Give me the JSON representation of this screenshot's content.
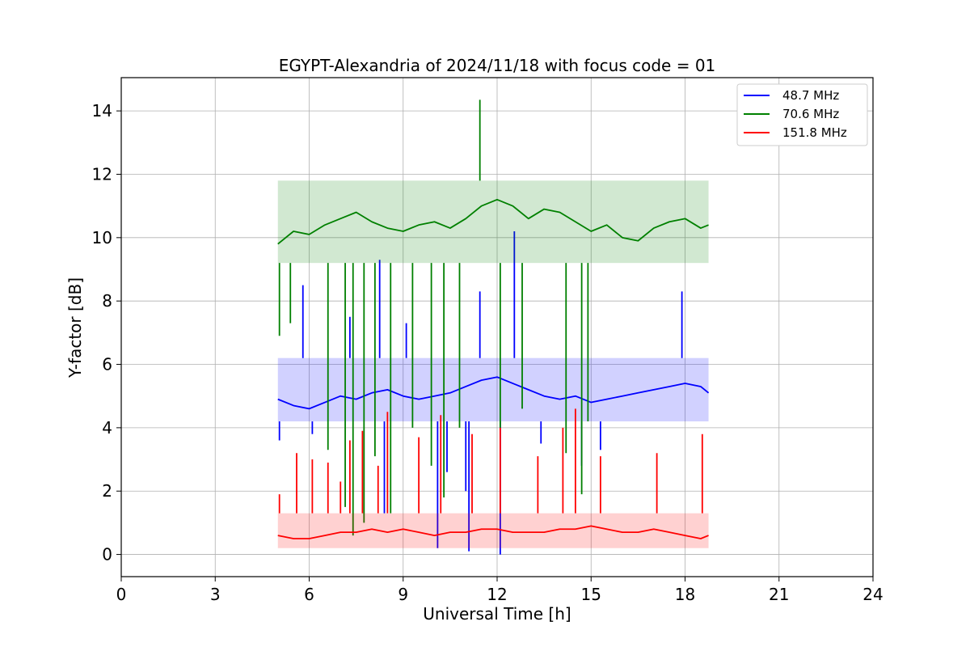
{
  "chart_data": {
    "type": "line",
    "title": "EGYPT-Alexandria of 2024/11/18 with focus code = 01",
    "xlabel": "Universal Time [h]",
    "ylabel": "Y-factor [dB]",
    "xlim": [
      0,
      24
    ],
    "ylim": [
      -0.7,
      15.05
    ],
    "xticks": [
      0,
      3,
      6,
      9,
      12,
      15,
      18,
      21,
      24
    ],
    "yticks": [
      0,
      2,
      4,
      6,
      8,
      10,
      12,
      14
    ],
    "grid": true,
    "legend_position": "top-right",
    "data_range_x": [
      5.0,
      18.75
    ],
    "series": [
      {
        "name": "48.7 MHz",
        "color": "#0000ff",
        "typical_range": [
          4.2,
          6.2
        ],
        "x": [
          5.0,
          5.5,
          6.0,
          6.5,
          7.0,
          7.5,
          8.0,
          8.5,
          9.0,
          9.5,
          10.0,
          10.5,
          11.0,
          11.5,
          12.0,
          12.5,
          13.0,
          13.5,
          14.0,
          14.5,
          15.0,
          15.5,
          16.0,
          16.5,
          17.0,
          17.5,
          18.0,
          18.5,
          18.75
        ],
        "y": [
          4.9,
          4.7,
          4.6,
          4.8,
          5.0,
          4.9,
          5.1,
          5.2,
          5.0,
          4.9,
          5.0,
          5.1,
          5.3,
          5.5,
          5.6,
          5.4,
          5.2,
          5.0,
          4.9,
          5.0,
          4.8,
          4.9,
          5.0,
          5.1,
          5.2,
          5.3,
          5.4,
          5.3,
          5.1
        ],
        "spikes": [
          {
            "x": 5.05,
            "y": 3.6
          },
          {
            "x": 5.8,
            "y": 8.5
          },
          {
            "x": 6.1,
            "y": 3.8
          },
          {
            "x": 7.3,
            "y": 7.5
          },
          {
            "x": 8.25,
            "y": 9.3
          },
          {
            "x": 8.4,
            "y": 1.3
          },
          {
            "x": 9.1,
            "y": 7.3
          },
          {
            "x": 10.1,
            "y": 0.2
          },
          {
            "x": 10.4,
            "y": 2.6
          },
          {
            "x": 11.0,
            "y": 2.0
          },
          {
            "x": 11.45,
            "y": 8.3
          },
          {
            "x": 11.1,
            "y": 0.1
          },
          {
            "x": 12.1,
            "y": 0.0
          },
          {
            "x": 12.55,
            "y": 10.2
          },
          {
            "x": 13.4,
            "y": 3.5
          },
          {
            "x": 14.7,
            "y": 2.8
          },
          {
            "x": 15.3,
            "y": 3.3
          },
          {
            "x": 17.9,
            "y": 8.3
          }
        ]
      },
      {
        "name": "70.6 MHz",
        "color": "#008000",
        "typical_range": [
          9.2,
          11.8
        ],
        "x": [
          5.0,
          5.5,
          6.0,
          6.5,
          7.0,
          7.5,
          8.0,
          8.5,
          9.0,
          9.5,
          10.0,
          10.5,
          11.0,
          11.5,
          12.0,
          12.5,
          13.0,
          13.5,
          14.0,
          14.5,
          15.0,
          15.5,
          16.0,
          16.5,
          17.0,
          17.5,
          18.0,
          18.5,
          18.75
        ],
        "y": [
          9.8,
          10.2,
          10.1,
          10.4,
          10.6,
          10.8,
          10.5,
          10.3,
          10.2,
          10.4,
          10.5,
          10.3,
          10.6,
          11.0,
          11.2,
          11.0,
          10.6,
          10.9,
          10.8,
          10.5,
          10.2,
          10.4,
          10.0,
          9.9,
          10.3,
          10.5,
          10.6,
          10.3,
          10.4
        ],
        "spikes": [
          {
            "x": 5.05,
            "y": 6.9
          },
          {
            "x": 5.4,
            "y": 7.3
          },
          {
            "x": 6.6,
            "y": 3.3
          },
          {
            "x": 7.15,
            "y": 1.5
          },
          {
            "x": 7.4,
            "y": 0.6
          },
          {
            "x": 7.75,
            "y": 1.0
          },
          {
            "x": 8.1,
            "y": 3.1
          },
          {
            "x": 8.6,
            "y": 1.3
          },
          {
            "x": 9.3,
            "y": 4.0
          },
          {
            "x": 9.9,
            "y": 2.8
          },
          {
            "x": 10.3,
            "y": 1.8
          },
          {
            "x": 10.8,
            "y": 4.0
          },
          {
            "x": 11.45,
            "y": 14.35
          },
          {
            "x": 12.1,
            "y": 4.0
          },
          {
            "x": 12.8,
            "y": 4.6
          },
          {
            "x": 14.2,
            "y": 3.2
          },
          {
            "x": 14.7,
            "y": 1.9
          },
          {
            "x": 14.9,
            "y": 4.2
          }
        ]
      },
      {
        "name": "151.8 MHz",
        "color": "#ff0000",
        "typical_range": [
          0.2,
          1.3
        ],
        "x": [
          5.0,
          5.5,
          6.0,
          6.5,
          7.0,
          7.5,
          8.0,
          8.5,
          9.0,
          9.5,
          10.0,
          10.5,
          11.0,
          11.5,
          12.0,
          12.5,
          13.0,
          13.5,
          14.0,
          14.5,
          15.0,
          15.5,
          16.0,
          16.5,
          17.0,
          17.5,
          18.0,
          18.5,
          18.75
        ],
        "y": [
          0.6,
          0.5,
          0.5,
          0.6,
          0.7,
          0.7,
          0.8,
          0.7,
          0.8,
          0.7,
          0.6,
          0.7,
          0.7,
          0.8,
          0.8,
          0.7,
          0.7,
          0.7,
          0.8,
          0.8,
          0.9,
          0.8,
          0.7,
          0.7,
          0.8,
          0.7,
          0.6,
          0.5,
          0.6
        ],
        "spikes": [
          {
            "x": 5.05,
            "y": 1.9
          },
          {
            "x": 5.6,
            "y": 3.2
          },
          {
            "x": 6.1,
            "y": 3.0
          },
          {
            "x": 6.6,
            "y": 2.9
          },
          {
            "x": 7.0,
            "y": 2.3
          },
          {
            "x": 7.3,
            "y": 3.6
          },
          {
            "x": 7.7,
            "y": 3.9
          },
          {
            "x": 8.2,
            "y": 2.8
          },
          {
            "x": 8.5,
            "y": 4.5
          },
          {
            "x": 9.5,
            "y": 3.7
          },
          {
            "x": 10.2,
            "y": 4.4
          },
          {
            "x": 11.2,
            "y": 3.8
          },
          {
            "x": 12.1,
            "y": 4.0
          },
          {
            "x": 13.3,
            "y": 3.1
          },
          {
            "x": 14.1,
            "y": 4.0
          },
          {
            "x": 14.5,
            "y": 4.6
          },
          {
            "x": 15.3,
            "y": 3.1
          },
          {
            "x": 17.1,
            "y": 3.2
          },
          {
            "x": 18.55,
            "y": 3.8
          }
        ]
      }
    ]
  }
}
